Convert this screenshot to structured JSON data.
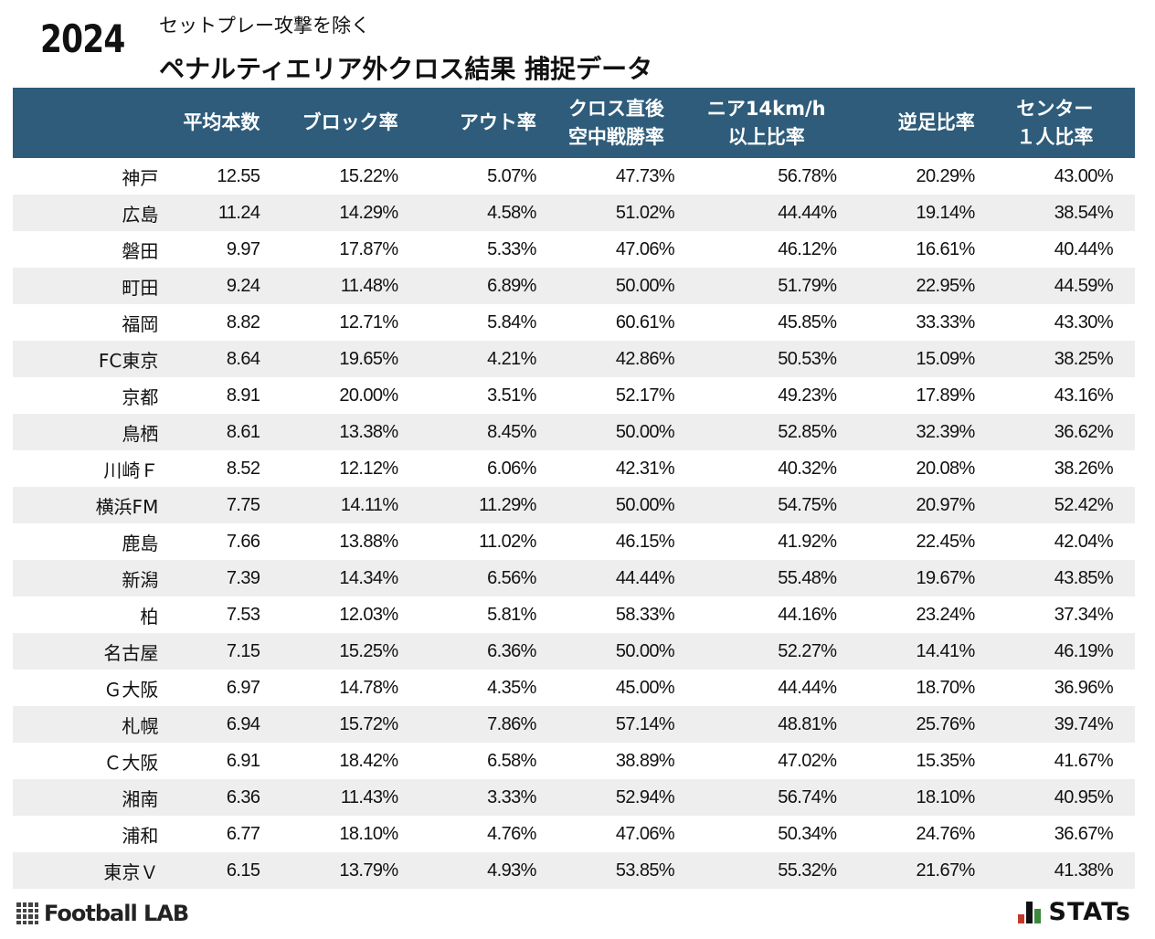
{
  "header": {
    "year": "2024",
    "subtitle": "セットプレー攻撃を除く",
    "title": "ペナルティエリア外クロス結果 捕捉データ"
  },
  "table": {
    "columns": [
      {
        "key": "team",
        "lines": [
          ""
        ]
      },
      {
        "key": "avg_count",
        "lines": [
          "平均本数"
        ]
      },
      {
        "key": "block_rate",
        "lines": [
          "ブロック率"
        ]
      },
      {
        "key": "out_rate",
        "lines": [
          "アウト率"
        ]
      },
      {
        "key": "aerial_win_rate",
        "lines": [
          "クロス直後",
          "空中戦勝率"
        ]
      },
      {
        "key": "near_14kmh",
        "lines": [
          "ニア14km/h",
          "以上比率"
        ]
      },
      {
        "key": "reverse_foot",
        "lines": [
          "逆足比率"
        ]
      },
      {
        "key": "center_one",
        "lines": [
          "センター",
          "１人比率"
        ]
      }
    ],
    "rows": [
      [
        "神戸",
        "12.55",
        "15.22%",
        "5.07%",
        "47.73%",
        "56.78%",
        "20.29%",
        "43.00%"
      ],
      [
        "広島",
        "11.24",
        "14.29%",
        "4.58%",
        "51.02%",
        "44.44%",
        "19.14%",
        "38.54%"
      ],
      [
        "磐田",
        "9.97",
        "17.87%",
        "5.33%",
        "47.06%",
        "46.12%",
        "16.61%",
        "40.44%"
      ],
      [
        "町田",
        "9.24",
        "11.48%",
        "6.89%",
        "50.00%",
        "51.79%",
        "22.95%",
        "44.59%"
      ],
      [
        "福岡",
        "8.82",
        "12.71%",
        "5.84%",
        "60.61%",
        "45.85%",
        "33.33%",
        "43.30%"
      ],
      [
        "FC東京",
        "8.64",
        "19.65%",
        "4.21%",
        "42.86%",
        "50.53%",
        "15.09%",
        "38.25%"
      ],
      [
        "京都",
        "8.91",
        "20.00%",
        "3.51%",
        "52.17%",
        "49.23%",
        "17.89%",
        "43.16%"
      ],
      [
        "鳥栖",
        "8.61",
        "13.38%",
        "8.45%",
        "50.00%",
        "52.85%",
        "32.39%",
        "36.62%"
      ],
      [
        "川崎Ｆ",
        "8.52",
        "12.12%",
        "6.06%",
        "42.31%",
        "40.32%",
        "20.08%",
        "38.26%"
      ],
      [
        "横浜FM",
        "7.75",
        "14.11%",
        "11.29%",
        "50.00%",
        "54.75%",
        "20.97%",
        "52.42%"
      ],
      [
        "鹿島",
        "7.66",
        "13.88%",
        "11.02%",
        "46.15%",
        "41.92%",
        "22.45%",
        "42.04%"
      ],
      [
        "新潟",
        "7.39",
        "14.34%",
        "6.56%",
        "44.44%",
        "55.48%",
        "19.67%",
        "43.85%"
      ],
      [
        "柏",
        "7.53",
        "12.03%",
        "5.81%",
        "58.33%",
        "44.16%",
        "23.24%",
        "37.34%"
      ],
      [
        "名古屋",
        "7.15",
        "15.25%",
        "6.36%",
        "50.00%",
        "52.27%",
        "14.41%",
        "46.19%"
      ],
      [
        "Ｇ大阪",
        "6.97",
        "14.78%",
        "4.35%",
        "45.00%",
        "44.44%",
        "18.70%",
        "36.96%"
      ],
      [
        "札幌",
        "6.94",
        "15.72%",
        "7.86%",
        "57.14%",
        "48.81%",
        "25.76%",
        "39.74%"
      ],
      [
        "Ｃ大阪",
        "6.91",
        "18.42%",
        "6.58%",
        "38.89%",
        "47.02%",
        "15.35%",
        "41.67%"
      ],
      [
        "湘南",
        "6.36",
        "11.43%",
        "3.33%",
        "52.94%",
        "56.74%",
        "18.10%",
        "40.95%"
      ],
      [
        "浦和",
        "6.77",
        "18.10%",
        "4.76%",
        "47.06%",
        "50.34%",
        "24.76%",
        "36.67%"
      ],
      [
        "東京Ｖ",
        "6.15",
        "13.79%",
        "4.93%",
        "53.85%",
        "55.32%",
        "21.67%",
        "41.38%"
      ]
    ]
  },
  "footer": {
    "left_logo_text": "Football LAB",
    "left_logo_icon": "grid-logo-icon",
    "right_logo_text": "STATs",
    "right_logo_icon": "bar-chart-logo-icon"
  },
  "colors": {
    "header_bg": "#2e5c7a",
    "stripe_bg": "#eeeeee",
    "accent_red": "#c0392b",
    "accent_green": "#3a8a3a"
  }
}
